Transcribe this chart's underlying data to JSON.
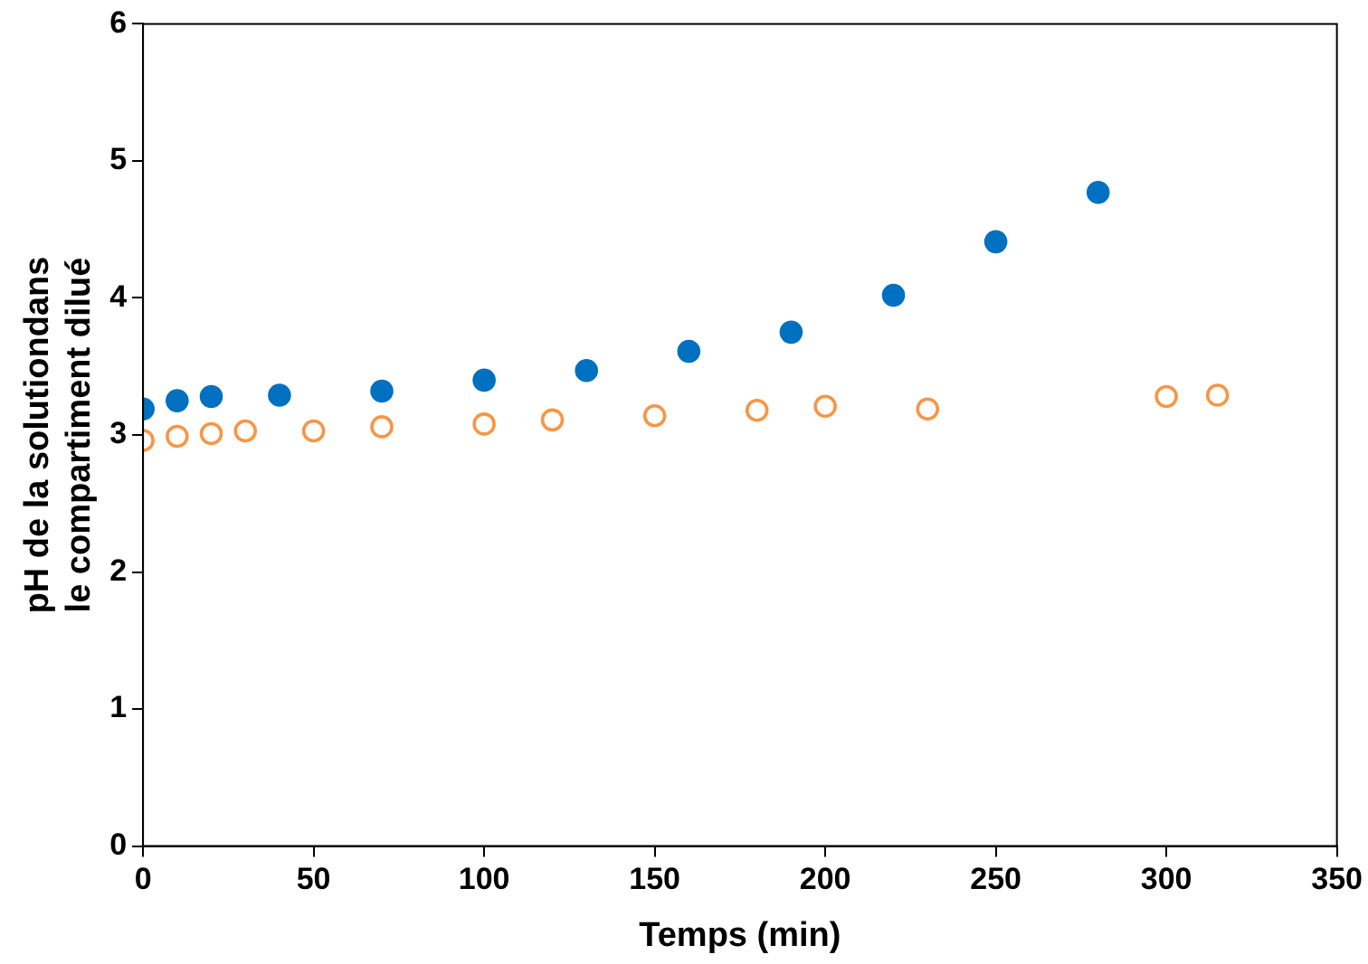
{
  "chart_data": {
    "type": "scatter",
    "xlabel": "Temps (min)",
    "ylabel": "pH de la solutiondans\nle compartiment dilué",
    "xlim": [
      0,
      350
    ],
    "xticks": [
      0,
      50,
      100,
      150,
      200,
      250,
      300,
      350
    ],
    "ylim": [
      0,
      6
    ],
    "yticks": [
      0,
      1,
      2,
      3,
      4,
      5,
      6
    ],
    "grid": false,
    "marker": "circle",
    "legend": false,
    "series": [
      {
        "color": "#0070c0",
        "x": [
          0,
          10,
          20,
          40,
          70,
          100,
          130,
          160,
          190,
          220,
          250,
          280
        ],
        "values": [
          3.19,
          3.25,
          3.28,
          3.29,
          3.32,
          3.4,
          3.47,
          3.61,
          3.75,
          4.02,
          4.41,
          4.77
        ]
      },
      {
        "color": "#f79646",
        "x": [
          0,
          10,
          20,
          30,
          50,
          70,
          100,
          120,
          150,
          180,
          200,
          230,
          300,
          315
        ],
        "values": [
          2.96,
          2.99,
          3.01,
          3.03,
          3.03,
          3.06,
          3.08,
          3.11,
          3.14,
          3.18,
          3.21,
          3.19,
          3.28,
          3.29
        ]
      }
    ]
  }
}
